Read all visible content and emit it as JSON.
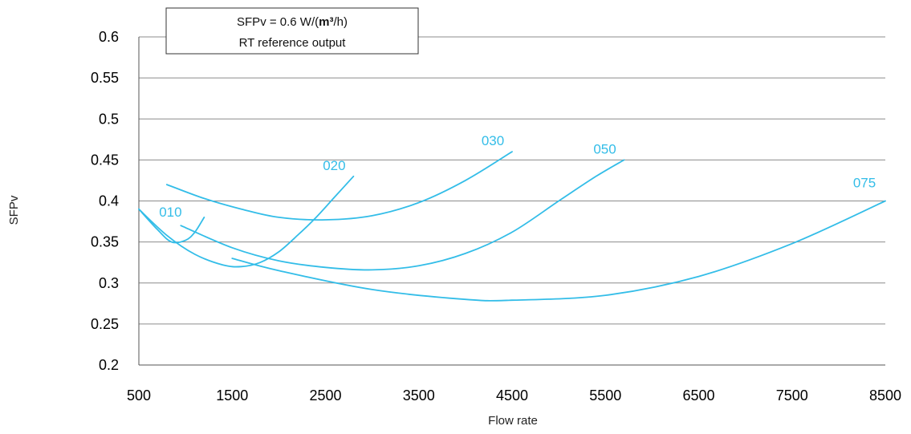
{
  "chart_data": {
    "type": "line",
    "title": "",
    "xlabel": "Flow rate",
    "ylabel": "SFPv",
    "xlim": [
      500,
      8500
    ],
    "ylim": [
      0.2,
      0.6
    ],
    "x_ticks": [
      500,
      1500,
      2500,
      3500,
      4500,
      5500,
      6500,
      7500,
      8500
    ],
    "y_ticks": [
      0.2,
      0.25,
      0.3,
      0.35,
      0.4,
      0.45,
      0.5,
      0.55,
      0.6
    ],
    "x_tick_labels": [
      "500",
      "1500",
      "2500",
      "3500",
      "4500",
      "5500",
      "6500",
      "7500",
      "8500"
    ],
    "y_tick_labels": [
      "0.2",
      "0.25",
      "0.3",
      "0.35",
      "0.4",
      "0.45",
      "0.5",
      "0.55",
      "0.6"
    ],
    "grid": "horizontal",
    "legend": {
      "position": "top-left",
      "line1_prefix": "SFPv = 0.6 W/(",
      "line1_bold": "m³",
      "line1_suffix": "/h)",
      "line2": "RT reference output"
    },
    "series_color": "#33bde8",
    "series": [
      {
        "name": "010",
        "x": [
          500,
          700,
          850,
          1000,
          1100,
          1200
        ],
        "y": [
          0.39,
          0.365,
          0.35,
          0.352,
          0.362,
          0.38
        ]
      },
      {
        "name": "020",
        "x": [
          500,
          800,
          1100,
          1400,
          1600,
          1800,
          2000,
          2200,
          2400,
          2600,
          2800
        ],
        "y": [
          0.39,
          0.358,
          0.335,
          0.322,
          0.32,
          0.325,
          0.338,
          0.358,
          0.38,
          0.405,
          0.43
        ]
      },
      {
        "name": "030",
        "x": [
          800,
          1200,
          1600,
          2000,
          2500,
          3000,
          3500,
          4000,
          4500
        ],
        "y": [
          0.42,
          0.403,
          0.39,
          0.38,
          0.377,
          0.382,
          0.398,
          0.425,
          0.46
        ]
      },
      {
        "name": "050",
        "x": [
          950,
          1500,
          2000,
          2500,
          3000,
          3500,
          4000,
          4500,
          5000,
          5400,
          5700
        ],
        "y": [
          0.37,
          0.343,
          0.327,
          0.319,
          0.316,
          0.321,
          0.336,
          0.362,
          0.4,
          0.43,
          0.45
        ]
      },
      {
        "name": "075",
        "x": [
          1500,
          2000,
          3000,
          4000,
          4500,
          5500,
          6500,
          7500,
          8500
        ],
        "y": [
          0.33,
          0.315,
          0.292,
          0.28,
          0.279,
          0.285,
          0.308,
          0.348,
          0.4
        ]
      }
    ]
  }
}
